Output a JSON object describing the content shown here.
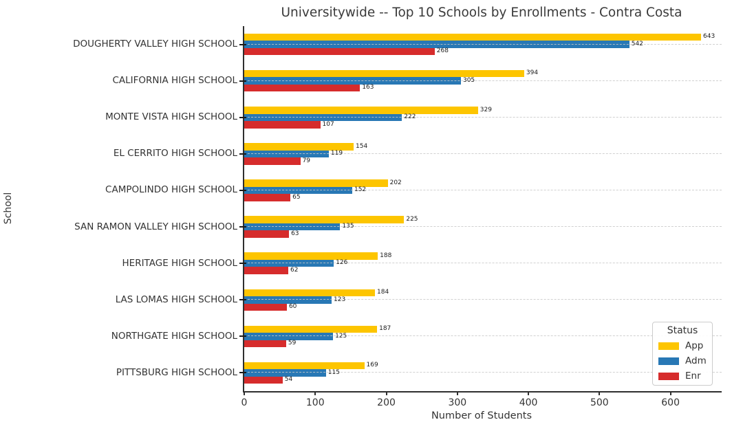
{
  "chart_data": {
    "type": "bar",
    "orientation": "horizontal",
    "title": "Universitywide -- Top 10 Schools by Enrollments - Contra Costa",
    "xlabel": "Number of Students",
    "ylabel": "School",
    "legend": {
      "title": "Status",
      "position": "lower right"
    },
    "categories": [
      "DOUGHERTY VALLEY HIGH SCHOOL",
      "CALIFORNIA HIGH SCHOOL",
      "MONTE VISTA HIGH SCHOOL",
      "EL CERRITO HIGH SCHOOL",
      "CAMPOLINDO HIGH SCHOOL",
      "SAN RAMON VALLEY HIGH SCHOOL",
      "HERITAGE HIGH SCHOOL",
      "LAS LOMAS HIGH SCHOOL",
      "NORTHGATE HIGH SCHOOL",
      "PITTSBURG HIGH SCHOOL"
    ],
    "series": [
      {
        "name": "App",
        "color": "#FDC500",
        "values": [
          643,
          394,
          329,
          154,
          202,
          225,
          188,
          184,
          187,
          169
        ]
      },
      {
        "name": "Adm",
        "color": "#2878B5",
        "values": [
          542,
          305,
          222,
          119,
          152,
          135,
          126,
          123,
          125,
          115
        ]
      },
      {
        "name": "Enr",
        "color": "#D62C2C",
        "values": [
          268,
          163,
          107,
          79,
          65,
          63,
          62,
          60,
          59,
          54
        ]
      }
    ],
    "xlim": [
      0,
      672
    ],
    "xticks": [
      0,
      100,
      200,
      300,
      400,
      500,
      600
    ],
    "grid": "horizontal-dashed",
    "value_labels": true
  },
  "colors": {
    "text": "#3a3a3a",
    "spine": "#2e2e2e",
    "grid": "#c8c8c8",
    "background": "#ffffff"
  }
}
